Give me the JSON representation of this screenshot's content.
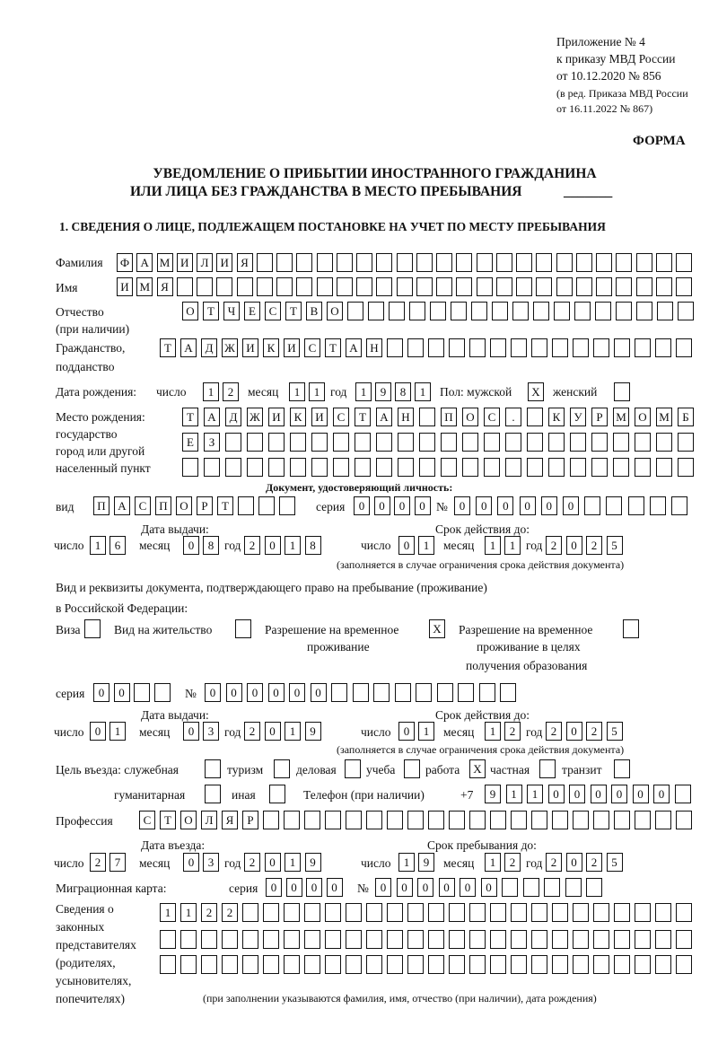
{
  "header": {
    "appendix": "Приложение № 4",
    "order": "к приказу МВД России",
    "order_date": "от 10.12.2020 № 856",
    "amendment_1": "(в ред. Приказа МВД России",
    "amendment_2": "от 16.11.2022 № 867)",
    "form_label": "ФОРМА"
  },
  "title": {
    "line1": "УВЕДОМЛЕНИЕ О ПРИБЫТИИ ИНОСТРАННОГО ГРАЖДАНИНА",
    "line2": "ИЛИ ЛИЦА БЕЗ ГРАЖДАНСТВА В МЕСТО ПРЕБЫВАНИЯ",
    "blank": "_______"
  },
  "section1_title": "1. СВЕДЕНИЯ О ЛИЦЕ, ПОДЛЕЖАЩЕМ ПОСТАНОВКЕ НА УЧЕТ ПО МЕСТУ ПРЕБЫВАНИЯ",
  "labels": {
    "surname": "Фамилия",
    "name": "Имя",
    "patronymic_1": "Отчество",
    "patronymic_2": "(при наличии)",
    "citizenship_1": "Гражданство,",
    "citizenship_2": "подданство",
    "birth_date": "Дата рождения:",
    "day": "число",
    "month": "месяц",
    "year": "год",
    "sex": "Пол: мужской",
    "female": "женский",
    "birthplace_1": "Место рождения:",
    "birthplace_2": "государство",
    "birthplace_3": "город или другой",
    "birthplace_4": "населенный пункт",
    "id_document": "Документ, удостоверяющий личность:",
    "doc_type": "вид",
    "series": "серия",
    "number": "№",
    "issue_date": "Дата выдачи:",
    "valid_until": "Срок действия до:",
    "valid_note": "(заполняется в случае ограничения срока действия документа)",
    "permit_heading_1": "Вид и реквизиты документа, подтверждающего право на пребывание (проживание)",
    "permit_heading_2": "в Российской Федерации:",
    "visa": "Виза",
    "residence_permit": "Вид на жительство",
    "trp_1": "Разрешение на временное",
    "trp_2": "проживание",
    "trp_edu_1": "Разрешение на временное",
    "trp_edu_2": "проживание в целях",
    "trp_edu_3": "получения образования",
    "purpose": "Цель въезда: служебная",
    "tourism": "туризм",
    "business": "деловая",
    "study": "учеба",
    "work": "работа",
    "private": "частная",
    "transit": "транзит",
    "humanitarian": "гуманитарная",
    "other": "иная",
    "phone": "Телефон (при наличии)",
    "phone_prefix": "+7",
    "profession": "Профессия",
    "entry_date": "Дата въезда:",
    "stay_until": "Срок пребывания до:",
    "migration_card": "Миграционная карта:",
    "representatives_1": "Сведения о",
    "representatives_2": "законных",
    "representatives_3": "представителях",
    "representatives_4": "(родителях,",
    "representatives_5": "усыновителях,",
    "representatives_6": "попечителях)",
    "representatives_note": "(при заполнении указываются фамилия, имя, отчество (при наличии), дата рождения)"
  },
  "fields": {
    "surname": "ФАМИЛИЯ",
    "name": "ИМЯ",
    "patronymic": "ОТЧЕСТВО",
    "citizenship": "ТАДЖИКИСТАН",
    "birth_day": "12",
    "birth_month": "11",
    "birth_year": "1981",
    "sex_male": "X",
    "sex_female": "",
    "birthplace_1": "ТАДЖИКИСТАН ПОС. КУРМОМБ",
    "birthplace_2": "ЕЗ",
    "birthplace_3": "",
    "doc_type": "ПАСПОРТ",
    "doc_series": "0000",
    "doc_number": "000000",
    "doc_issue_day": "16",
    "doc_issue_month": "08",
    "doc_issue_year": "2018",
    "doc_valid_day": "01",
    "doc_valid_month": "11",
    "doc_valid_year": "2025",
    "visa": "",
    "residence_permit": "",
    "trp": "X",
    "trp_edu": "",
    "permit_series": "00",
    "permit_number": "000000",
    "permit_issue_day": "01",
    "permit_issue_month": "03",
    "permit_issue_year": "2019",
    "permit_valid_day": "01",
    "permit_valid_month": "12",
    "permit_valid_year": "2025",
    "purpose_official": "",
    "purpose_tourism": "",
    "purpose_business": "",
    "purpose_study": "",
    "purpose_work": "X",
    "purpose_private": "",
    "purpose_transit": "",
    "purpose_humanitarian": "",
    "purpose_other": "",
    "phone": "911000000",
    "profession": "СТОЛЯР",
    "entry_day": "27",
    "entry_month": "03",
    "entry_year": "2019",
    "stay_day": "19",
    "stay_month": "12",
    "stay_year": "2025",
    "migration_series": "0000",
    "migration_number": "000000",
    "representatives_1": "1122",
    "representatives_2": "",
    "representatives_3": ""
  }
}
